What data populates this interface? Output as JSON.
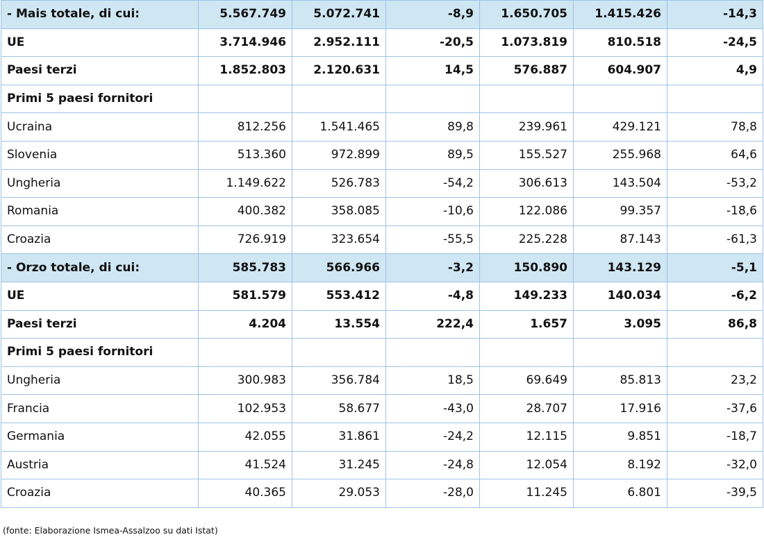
{
  "rows": [
    {
      "kind": "total",
      "label": "- Mais totale, di cui:",
      "values": [
        "5.567.749",
        "5.072.741",
        "-8,9",
        "1.650.705",
        "1.415.426",
        "-14,3"
      ]
    },
    {
      "kind": "bold",
      "label": "UE",
      "values": [
        "3.714.946",
        "2.952.111",
        "-20,5",
        "1.073.819",
        "810.518",
        "-24,5"
      ]
    },
    {
      "kind": "bold",
      "label": "Paesi terzi",
      "values": [
        "1.852.803",
        "2.120.631",
        "14,5",
        "576.887",
        "604.907",
        "4,9"
      ]
    },
    {
      "kind": "section",
      "label": "Primi 5 paesi fornitori",
      "values": [
        "",
        "",
        "",
        "",
        "",
        ""
      ]
    },
    {
      "kind": "plain",
      "label": "Ucraina",
      "values": [
        "812.256",
        "1.541.465",
        "89,8",
        "239.961",
        "429.121",
        "78,8"
      ]
    },
    {
      "kind": "plain",
      "label": "Slovenia",
      "values": [
        "513.360",
        "972.899",
        "89,5",
        "155.527",
        "255.968",
        "64,6"
      ]
    },
    {
      "kind": "plain",
      "label": "Ungheria",
      "values": [
        "1.149.622",
        "526.783",
        "-54,2",
        "306.613",
        "143.504",
        "-53,2"
      ]
    },
    {
      "kind": "plain",
      "label": "Romania",
      "values": [
        "400.382",
        "358.085",
        "-10,6",
        "122.086",
        "99.357",
        "-18,6"
      ]
    },
    {
      "kind": "plain",
      "label": "Croazia",
      "values": [
        "726.919",
        "323.654",
        "-55,5",
        "225.228",
        "87.143",
        "-61,3"
      ]
    },
    {
      "kind": "total",
      "label": "- Orzo totale, di cui:",
      "values": [
        "585.783",
        "566.966",
        "-3,2",
        "150.890",
        "143.129",
        "-5,1"
      ]
    },
    {
      "kind": "bold",
      "label": "UE",
      "values": [
        "581.579",
        "553.412",
        "-4,8",
        "149.233",
        "140.034",
        "-6,2"
      ]
    },
    {
      "kind": "bold",
      "label": "Paesi terzi",
      "values": [
        "4.204",
        "13.554",
        "222,4",
        "1.657",
        "3.095",
        "86,8"
      ]
    },
    {
      "kind": "section",
      "label": "Primi 5 paesi fornitori",
      "values": [
        "",
        "",
        "",
        "",
        "",
        ""
      ]
    },
    {
      "kind": "plain",
      "label": "Ungheria",
      "values": [
        "300.983",
        "356.784",
        "18,5",
        "69.649",
        "85.813",
        "23,2"
      ]
    },
    {
      "kind": "plain",
      "label": "Francia",
      "values": [
        "102.953",
        "58.677",
        "-43,0",
        "28.707",
        "17.916",
        "-37,6"
      ]
    },
    {
      "kind": "plain",
      "label": "Germania",
      "values": [
        "42.055",
        "31.861",
        "-24,2",
        "12.115",
        "9.851",
        "-18,7"
      ]
    },
    {
      "kind": "plain",
      "label": "Austria",
      "values": [
        "41.524",
        "31.245",
        "-24,8",
        "12.054",
        "8.192",
        "-32,0"
      ]
    },
    {
      "kind": "plain",
      "label": "Croazia",
      "values": [
        "40.365",
        "29.053",
        "-28,0",
        "11.245",
        "6.801",
        "-39,5"
      ]
    }
  ],
  "source_note": "(fonte: Elaborazione Ismea-Assalzoo su dati Istat)",
  "colors": {
    "total_row_bg": "#cfe6f3",
    "grid_line": "#9dc3e6"
  }
}
